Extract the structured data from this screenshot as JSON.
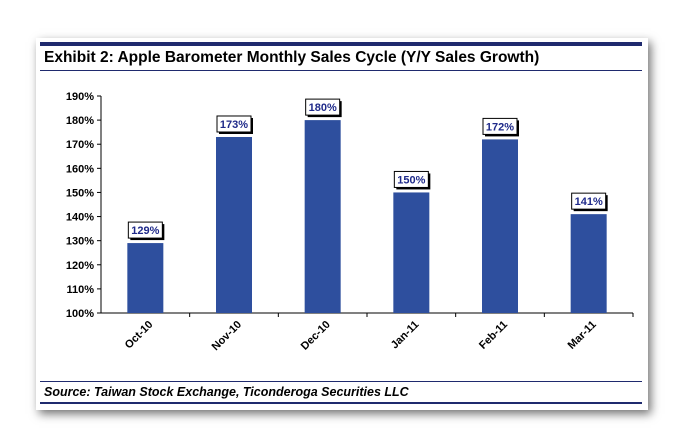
{
  "title": "Exhibit 2: Apple Barometer Monthly Sales Cycle (Y/Y Sales Growth)",
  "source": "Source: Taiwan Stock Exchange, Ticonderoga Securities LLC",
  "colors": {
    "bar": "#2e4f9e",
    "label_text": "#1f2a8a",
    "rule": "#1f2a6e"
  },
  "chart_data": {
    "type": "bar",
    "categories": [
      "Oct-10",
      "Nov-10",
      "Dec-10",
      "Jan-11",
      "Feb-11",
      "Mar-11"
    ],
    "values": [
      129,
      173,
      180,
      150,
      172,
      141
    ],
    "data_labels": [
      "129%",
      "173%",
      "180%",
      "150%",
      "172%",
      "141%"
    ],
    "ylim": [
      100,
      190
    ],
    "yticks": [
      100,
      110,
      120,
      130,
      140,
      150,
      160,
      170,
      180,
      190
    ],
    "ytick_labels": [
      "100%",
      "110%",
      "120%",
      "130%",
      "140%",
      "150%",
      "160%",
      "170%",
      "180%",
      "190%"
    ],
    "title": "",
    "xlabel": "",
    "ylabel": "",
    "grid": false,
    "legend": false
  }
}
